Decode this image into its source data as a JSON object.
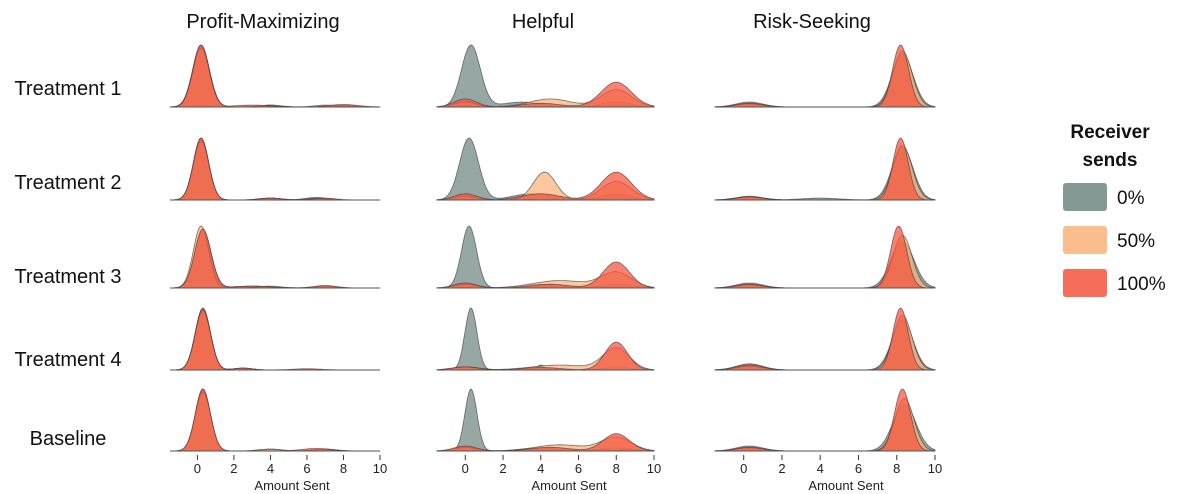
{
  "chart_data": {
    "type": "area",
    "chart_kind": "ridgeline density",
    "columns": [
      "Profit-Maximizing",
      "Helpful",
      "Risk-Seeking"
    ],
    "rows": [
      "Treatment 1",
      "Treatment 2",
      "Treatment 3",
      "Treatment 4",
      "Baseline"
    ],
    "xlabel": "Amount Sent",
    "x_ticks": [
      0,
      2,
      4,
      6,
      8,
      10
    ],
    "xlim": [
      -1.5,
      10
    ],
    "legend": {
      "title_lines": [
        "Receiver",
        "sends"
      ],
      "placement": "right",
      "entries": [
        {
          "label": "0%",
          "color": "#6f8681"
        },
        {
          "label": "50%",
          "color": "#f9b27a"
        },
        {
          "label": "100%",
          "color": "#f5533d"
        }
      ]
    },
    "panels": [
      [
        {
          "0%": [
            [
              0.2,
              0.46,
              1.0
            ],
            [
              4,
              0.5,
              0.03
            ],
            [
              8,
              0.6,
              0.03
            ]
          ],
          "50%": [
            [
              0.2,
              0.45,
              0.95
            ],
            [
              4,
              0.6,
              0.03
            ],
            [
              7,
              0.6,
              0.03
            ]
          ],
          "100%": [
            [
              0.2,
              0.45,
              1.0
            ],
            [
              3,
              1,
              0.03
            ],
            [
              8,
              0.8,
              0.04
            ]
          ]
        },
        {
          "0%": [
            [
              0.2,
              0.42,
              1.0
            ],
            [
              4,
              0.6,
              0.03
            ],
            [
              6.5,
              0.6,
              0.04
            ]
          ],
          "50%": [
            [
              0.2,
              0.42,
              0.95
            ],
            [
              4,
              0.6,
              0.03
            ],
            [
              6.5,
              0.5,
              0.03
            ]
          ],
          "100%": [
            [
              0.2,
              0.42,
              1.0
            ],
            [
              4,
              0.6,
              0.03
            ],
            [
              7,
              0.6,
              0.03
            ]
          ]
        },
        {
          "0%": [
            [
              0.3,
              0.45,
              0.92
            ],
            [
              3,
              1,
              0.03
            ],
            [
              7,
              0.6,
              0.03
            ]
          ],
          "50%": [
            [
              0.2,
              0.42,
              1.0
            ],
            [
              4,
              0.6,
              0.03
            ],
            [
              7,
              0.5,
              0.03
            ]
          ],
          "100%": [
            [
              0.3,
              0.45,
              0.95
            ],
            [
              3,
              1,
              0.03
            ],
            [
              7,
              0.6,
              0.04
            ]
          ]
        },
        {
          "0%": [
            [
              0.3,
              0.42,
              1.0
            ],
            [
              2.5,
              0.5,
              0.03
            ]
          ],
          "50%": [
            [
              0.3,
              0.42,
              0.95
            ],
            [
              2.5,
              0.5,
              0.03
            ]
          ],
          "100%": [
            [
              0.3,
              0.42,
              0.98
            ],
            [
              2.5,
              0.5,
              0.03
            ],
            [
              6,
              0.8,
              0.02
            ]
          ]
        },
        {
          "0%": [
            [
              0.3,
              0.4,
              1.0
            ],
            [
              4,
              0.6,
              0.03
            ],
            [
              7,
              0.6,
              0.03
            ]
          ],
          "50%": [
            [
              0.3,
              0.42,
              0.95
            ],
            [
              4,
              0.6,
              0.03
            ],
            [
              7,
              0.5,
              0.03
            ]
          ],
          "100%": [
            [
              0.3,
              0.42,
              1.0
            ],
            [
              6.5,
              0.8,
              0.04
            ]
          ]
        }
      ],
      [
        {
          "0%": [
            [
              0.3,
              0.5,
              1.0
            ],
            [
              3,
              1,
              0.08
            ],
            [
              8,
              0.8,
              0.08
            ]
          ],
          "50%": [
            [
              0,
              0.6,
              0.08
            ],
            [
              4.5,
              1.1,
              0.13
            ],
            [
              8,
              0.8,
              0.28
            ]
          ],
          "100%": [
            [
              0,
              0.6,
              0.13
            ],
            [
              4,
              1,
              0.06
            ],
            [
              8,
              0.8,
              0.4
            ]
          ]
        },
        {
          "0%": [
            [
              0.2,
              0.5,
              1.0
            ],
            [
              3.5,
              1,
              0.1
            ],
            [
              8,
              0.8,
              0.1
            ]
          ],
          "50%": [
            [
              0,
              0.6,
              0.06
            ],
            [
              4.2,
              0.6,
              0.45
            ],
            [
              8,
              0.8,
              0.3
            ]
          ],
          "100%": [
            [
              0,
              0.6,
              0.1
            ],
            [
              4,
              1,
              0.1
            ],
            [
              8,
              0.8,
              0.45
            ]
          ]
        },
        {
          "0%": [
            [
              0.2,
              0.4,
              1.0
            ],
            [
              4,
              1,
              0.06
            ],
            [
              8,
              0.8,
              0.06
            ]
          ],
          "50%": [
            [
              0,
              0.6,
              0.06
            ],
            [
              5,
              1.4,
              0.12
            ],
            [
              8,
              0.8,
              0.25
            ]
          ],
          "100%": [
            [
              0,
              0.6,
              0.08
            ],
            [
              4.5,
              1,
              0.06
            ],
            [
              8,
              0.7,
              0.42
            ]
          ]
        },
        {
          "0%": [
            [
              0.3,
              0.32,
              1.0
            ],
            [
              4,
              0.2,
              0.08
            ],
            [
              8,
              0.7,
              0.05
            ]
          ],
          "50%": [
            [
              0,
              0.7,
              0.05
            ],
            [
              5,
              1.5,
              0.08
            ],
            [
              8,
              0.7,
              0.35
            ]
          ],
          "100%": [
            [
              0,
              0.7,
              0.05
            ],
            [
              4,
              1,
              0.04
            ],
            [
              8,
              0.6,
              0.45
            ]
          ]
        },
        {
          "0%": [
            [
              0.3,
              0.32,
              1.0
            ],
            [
              4,
              1,
              0.05
            ],
            [
              8,
              0.8,
              0.05
            ]
          ],
          "50%": [
            [
              0,
              0.6,
              0.06
            ],
            [
              5,
              1.3,
              0.1
            ],
            [
              8,
              0.8,
              0.22
            ]
          ],
          "100%": [
            [
              0,
              0.6,
              0.08
            ],
            [
              4.5,
              1,
              0.06
            ],
            [
              8,
              0.7,
              0.28
            ]
          ]
        }
      ],
      [
        {
          "0%": [
            [
              0.3,
              0.7,
              0.08
            ],
            [
              8.3,
              0.55,
              0.85
            ]
          ],
          "50%": [
            [
              0.3,
              0.7,
              0.05
            ],
            [
              8.3,
              0.5,
              0.9
            ]
          ],
          "100%": [
            [
              0.3,
              0.7,
              0.06
            ],
            [
              8.2,
              0.42,
              1.0
            ]
          ]
        },
        {
          "0%": [
            [
              0.3,
              0.7,
              0.06
            ],
            [
              4,
              1,
              0.03
            ],
            [
              8.3,
              0.55,
              0.85
            ]
          ],
          "50%": [
            [
              0.3,
              0.7,
              0.05
            ],
            [
              8.3,
              0.5,
              0.88
            ]
          ],
          "100%": [
            [
              0.3,
              0.7,
              0.05
            ],
            [
              8.2,
              0.4,
              1.0
            ]
          ]
        },
        {
          "0%": [
            [
              0.3,
              0.7,
              0.08
            ],
            [
              8.3,
              0.6,
              0.75
            ]
          ],
          "50%": [
            [
              0.3,
              0.7,
              0.05
            ],
            [
              8.3,
              0.5,
              0.85
            ]
          ],
          "100%": [
            [
              0.3,
              0.7,
              0.06
            ],
            [
              8.1,
              0.42,
              1.0
            ]
          ]
        },
        {
          "0%": [
            [
              0.3,
              0.7,
              0.1
            ],
            [
              8.3,
              0.55,
              0.8
            ]
          ],
          "50%": [
            [
              0.3,
              0.7,
              0.06
            ],
            [
              8.3,
              0.5,
              0.88
            ]
          ],
          "100%": [
            [
              0.3,
              0.7,
              0.08
            ],
            [
              8.2,
              0.4,
              1.0
            ]
          ]
        },
        {
          "0%": [
            [
              0.3,
              0.7,
              0.08
            ],
            [
              8.4,
              0.6,
              0.75
            ]
          ],
          "50%": [
            [
              0.3,
              0.7,
              0.05
            ],
            [
              8.4,
              0.5,
              0.85
            ]
          ],
          "100%": [
            [
              0.3,
              0.7,
              0.06
            ],
            [
              8.3,
              0.42,
              1.0
            ]
          ]
        }
      ]
    ]
  }
}
